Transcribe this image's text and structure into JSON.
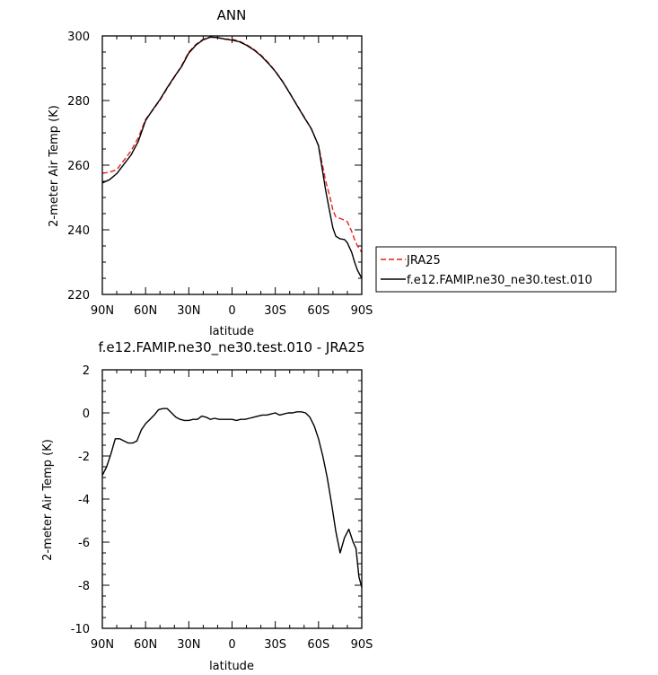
{
  "chart_data": [
    {
      "type": "line",
      "title": "ANN",
      "xlabel": "latitude",
      "ylabel": "2-meter Air Temp (K)",
      "xlim": [
        90,
        -90
      ],
      "ylim": [
        220,
        300
      ],
      "x_ticks": [
        90,
        60,
        30,
        0,
        -30,
        -60,
        -90
      ],
      "x_tick_labels": [
        "90N",
        "60N",
        "30N",
        "0",
        "30S",
        "60S",
        "90S"
      ],
      "y_ticks": [
        220,
        240,
        260,
        280,
        300
      ],
      "y_tick_labels": [
        "220",
        "240",
        "260",
        "280",
        "300"
      ],
      "legend_position": "right",
      "series": [
        {
          "name": "JRA25",
          "color": "#e8201c",
          "dash": "dashed",
          "x": [
            90,
            85,
            80,
            75,
            70,
            65,
            60,
            55,
            50,
            45,
            40,
            35,
            30,
            25,
            20,
            15,
            10,
            5,
            0,
            -5,
            -10,
            -15,
            -20,
            -25,
            -30,
            -35,
            -40,
            -45,
            -50,
            -55,
            -60,
            -65,
            -68,
            -70,
            -72,
            -75,
            -78,
            -80,
            -83,
            -85,
            -87,
            -90
          ],
          "values": [
            257.5,
            257.8,
            258.6,
            261.5,
            264.5,
            268.5,
            274.2,
            277.0,
            280.1,
            283.8,
            287.2,
            290.8,
            295.0,
            297.4,
            299.0,
            299.7,
            299.4,
            299.0,
            299.0,
            298.4,
            297.3,
            295.9,
            294.1,
            291.8,
            289.1,
            286.0,
            282.4,
            278.6,
            275.0,
            271.2,
            266.1,
            255.0,
            250.0,
            246.0,
            244.0,
            243.5,
            243.0,
            242.5,
            239.5,
            237.0,
            235.0,
            233.0
          ]
        },
        {
          "name": "f.e12.FAMIP.ne30_ne30.test.010",
          "color": "#000000",
          "dash": "solid",
          "x": [
            90,
            85,
            80,
            75,
            70,
            65,
            60,
            55,
            50,
            45,
            40,
            35,
            30,
            25,
            20,
            15,
            10,
            5,
            0,
            -5,
            -10,
            -15,
            -20,
            -25,
            -30,
            -35,
            -40,
            -45,
            -50,
            -55,
            -60,
            -65,
            -68,
            -70,
            -72,
            -75,
            -78,
            -80,
            -83,
            -85,
            -87,
            -90
          ],
          "values": [
            254.5,
            255.5,
            257.4,
            260.3,
            263.2,
            267.4,
            273.8,
            277.2,
            280.3,
            284.0,
            287.4,
            290.5,
            294.7,
            297.2,
            298.8,
            299.6,
            299.5,
            299.0,
            298.7,
            298.2,
            297.1,
            295.7,
            293.9,
            291.6,
            289.0,
            285.9,
            282.3,
            278.5,
            274.8,
            271.3,
            266.0,
            252.0,
            245.0,
            240.5,
            238.0,
            237.2,
            237.0,
            236.0,
            233.0,
            230.0,
            227.5,
            225.0
          ]
        }
      ]
    },
    {
      "type": "line",
      "title": "f.e12.FAMIP.ne30_ne30.test.010 - JRA25",
      "xlabel": "latitude",
      "ylabel": "2-meter Air Temp (K)",
      "xlim": [
        90,
        -90
      ],
      "ylim": [
        -10,
        2
      ],
      "x_ticks": [
        90,
        60,
        30,
        0,
        -30,
        -60,
        -90
      ],
      "x_tick_labels": [
        "90N",
        "60N",
        "30N",
        "0",
        "30S",
        "60S",
        "90S"
      ],
      "y_ticks": [
        -10,
        -8,
        -6,
        -4,
        -2,
        0,
        2
      ],
      "y_tick_labels": [
        "-10",
        "-8",
        "-6",
        "-4",
        "-2",
        "0",
        "2"
      ],
      "series": [
        {
          "name": "",
          "color": "#000000",
          "dash": "solid",
          "x": [
            90,
            87,
            84,
            81,
            78,
            75,
            72,
            69,
            66,
            63,
            60,
            57,
            54,
            51,
            48,
            45,
            42,
            39,
            36,
            33,
            30,
            27,
            24,
            21,
            18,
            15,
            12,
            9,
            6,
            3,
            0,
            -3,
            -6,
            -9,
            -12,
            -15,
            -18,
            -21,
            -24,
            -27,
            -30,
            -33,
            -36,
            -39,
            -42,
            -45,
            -48,
            -51,
            -54,
            -57,
            -60,
            -63,
            -66,
            -69,
            -72,
            -75,
            -78,
            -81,
            -84,
            -86,
            -88,
            -90
          ],
          "values": [
            -2.9,
            -2.5,
            -1.9,
            -1.2,
            -1.2,
            -1.3,
            -1.4,
            -1.4,
            -1.3,
            -0.8,
            -0.5,
            -0.3,
            -0.1,
            0.15,
            0.2,
            0.2,
            0.0,
            -0.2,
            -0.3,
            -0.35,
            -0.35,
            -0.3,
            -0.3,
            -0.15,
            -0.2,
            -0.3,
            -0.25,
            -0.3,
            -0.3,
            -0.3,
            -0.3,
            -0.35,
            -0.3,
            -0.3,
            -0.25,
            -0.2,
            -0.15,
            -0.1,
            -0.1,
            -0.05,
            0.0,
            -0.1,
            -0.05,
            0.0,
            0.0,
            0.05,
            0.05,
            0.0,
            -0.2,
            -0.6,
            -1.2,
            -2.0,
            -3.0,
            -4.2,
            -5.5,
            -6.5,
            -5.8,
            -5.4,
            -6.0,
            -6.3,
            -7.6,
            -8.1
          ]
        }
      ]
    }
  ]
}
